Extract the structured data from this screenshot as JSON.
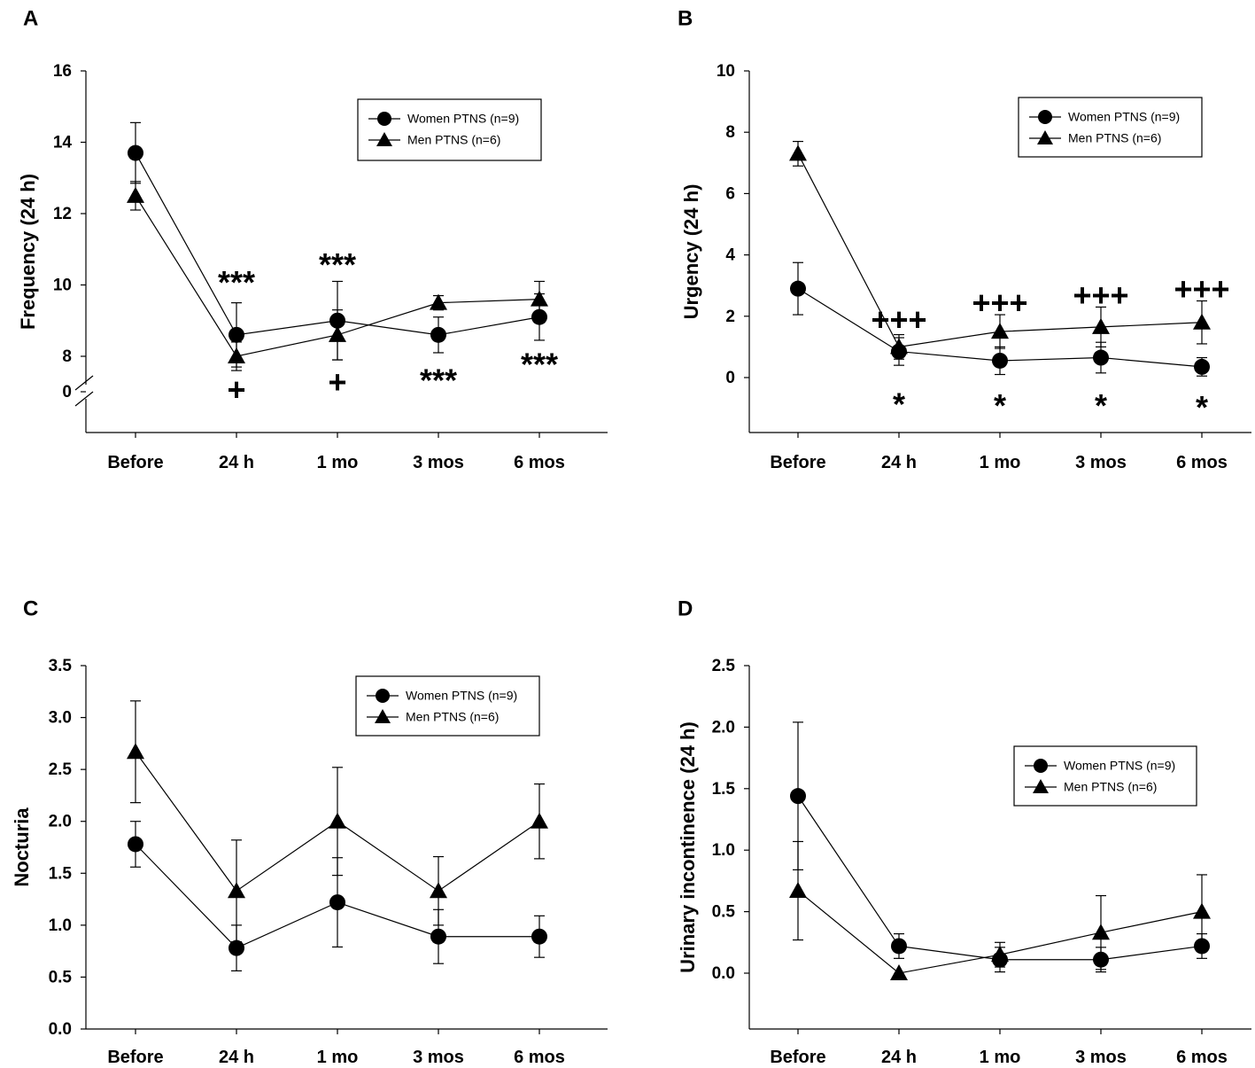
{
  "chart_data": [
    {
      "panel": "A",
      "type": "line",
      "categories": [
        "Before",
        "24 h",
        "1 mo",
        "3 mos",
        "6 mos"
      ],
      "ylabel": "Frequency (24 h)",
      "xlabel": "",
      "ylim": [
        7.0,
        16
      ],
      "yticks": [
        8,
        10,
        12,
        14,
        16
      ],
      "broken_axis": true,
      "broken_axis_label": "0",
      "legend": {
        "placement": "top-right"
      },
      "series": [
        {
          "name": "Women PTNS (n=9)",
          "marker": "circle",
          "values": [
            13.7,
            8.6,
            9.0,
            8.6,
            9.1
          ],
          "errors": [
            0.85,
            0.9,
            1.1,
            0.5,
            0.65
          ]
        },
        {
          "name": "Men PTNS (n=6)",
          "marker": "triangle",
          "values": [
            12.5,
            8.0,
            8.6,
            9.5,
            9.6
          ],
          "errors": [
            0.4,
            0.4,
            0.7,
            0.2,
            0.5
          ]
        }
      ],
      "annotations": [
        {
          "text": "***",
          "cat": 1,
          "y": 10.0
        },
        {
          "text": "***",
          "cat": 2,
          "y": 10.5
        },
        {
          "text": "***",
          "cat": 3,
          "y": 7.25
        },
        {
          "text": "***",
          "cat": 4,
          "y": 7.7
        },
        {
          "text": "+",
          "cat": 1,
          "y": 7.0
        },
        {
          "text": "+",
          "cat": 2,
          "y": 7.2
        }
      ]
    },
    {
      "panel": "B",
      "type": "line",
      "categories": [
        "Before",
        "24 h",
        "1 mo",
        "3 mos",
        "6 mos"
      ],
      "ylabel": "Urgency (24 h)",
      "xlabel": "",
      "ylim": [
        -1.8,
        10
      ],
      "yticks": [
        0,
        2,
        4,
        6,
        8,
        10
      ],
      "broken_axis": false,
      "legend": {
        "placement": "top-right"
      },
      "series": [
        {
          "name": "Women PTNS (n=9)",
          "marker": "circle",
          "values": [
            2.9,
            0.85,
            0.55,
            0.65,
            0.35
          ],
          "errors": [
            0.85,
            0.45,
            0.45,
            0.5,
            0.3
          ]
        },
        {
          "name": "Men PTNS (n=6)",
          "marker": "triangle",
          "values": [
            7.3,
            1.0,
            1.5,
            1.65,
            1.8
          ],
          "errors": [
            0.4,
            0.4,
            0.55,
            0.65,
            0.7
          ]
        }
      ],
      "annotations": [
        {
          "text": "+++",
          "cat": 1,
          "y": 1.8
        },
        {
          "text": "+++",
          "cat": 2,
          "y": 2.35
        },
        {
          "text": "+++",
          "cat": 3,
          "y": 2.6
        },
        {
          "text": "+++",
          "cat": 4,
          "y": 2.8
        },
        {
          "text": "*",
          "cat": 1,
          "y": -0.95
        },
        {
          "text": "*",
          "cat": 2,
          "y": -1.0
        },
        {
          "text": "*",
          "cat": 3,
          "y": -1.0
        },
        {
          "text": "*",
          "cat": 4,
          "y": -1.05
        }
      ]
    },
    {
      "panel": "C",
      "type": "line",
      "categories": [
        "Before",
        "24 h",
        "1 mo",
        "3 mos",
        "6 mos"
      ],
      "ylabel": "Nocturia",
      "xlabel": "",
      "ylim": [
        0.0,
        3.5
      ],
      "yticks": [
        0.0,
        0.5,
        1.0,
        1.5,
        2.0,
        2.5,
        3.0,
        3.5
      ],
      "broken_axis": false,
      "legend": {
        "placement": "top-right"
      },
      "series": [
        {
          "name": "Women PTNS (n=9)",
          "marker": "circle",
          "values": [
            1.78,
            0.78,
            1.22,
            0.89,
            0.89
          ],
          "errors": [
            0.22,
            0.22,
            0.43,
            0.26,
            0.2
          ]
        },
        {
          "name": "Men PTNS (n=6)",
          "marker": "triangle",
          "values": [
            2.67,
            1.33,
            2.0,
            1.33,
            2.0
          ],
          "errors": [
            0.49,
            0.49,
            0.52,
            0.33,
            0.36
          ]
        }
      ],
      "annotations": []
    },
    {
      "panel": "D",
      "type": "line",
      "categories": [
        "Before",
        "24 h",
        "1 mo",
        "3 mos",
        "6 mos"
      ],
      "ylabel": "Urinary incontinence (24 h)",
      "xlabel": "",
      "ylim": [
        -0.45,
        2.5
      ],
      "yticks": [
        0.0,
        0.5,
        1.0,
        1.5,
        2.0,
        2.5
      ],
      "broken_axis": false,
      "legend": {
        "placement": "right"
      },
      "series": [
        {
          "name": "Women PTNS (n=9)",
          "marker": "circle",
          "values": [
            1.44,
            0.22,
            0.11,
            0.11,
            0.22
          ],
          "errors": [
            0.6,
            0.1,
            0.1,
            0.1,
            0.1
          ]
        },
        {
          "name": "Men PTNS (n=6)",
          "marker": "triangle",
          "values": [
            0.67,
            0.0,
            0.15,
            0.33,
            0.5
          ],
          "errors": [
            0.4,
            0.0,
            0.1,
            0.3,
            0.3
          ]
        }
      ],
      "annotations": []
    }
  ]
}
